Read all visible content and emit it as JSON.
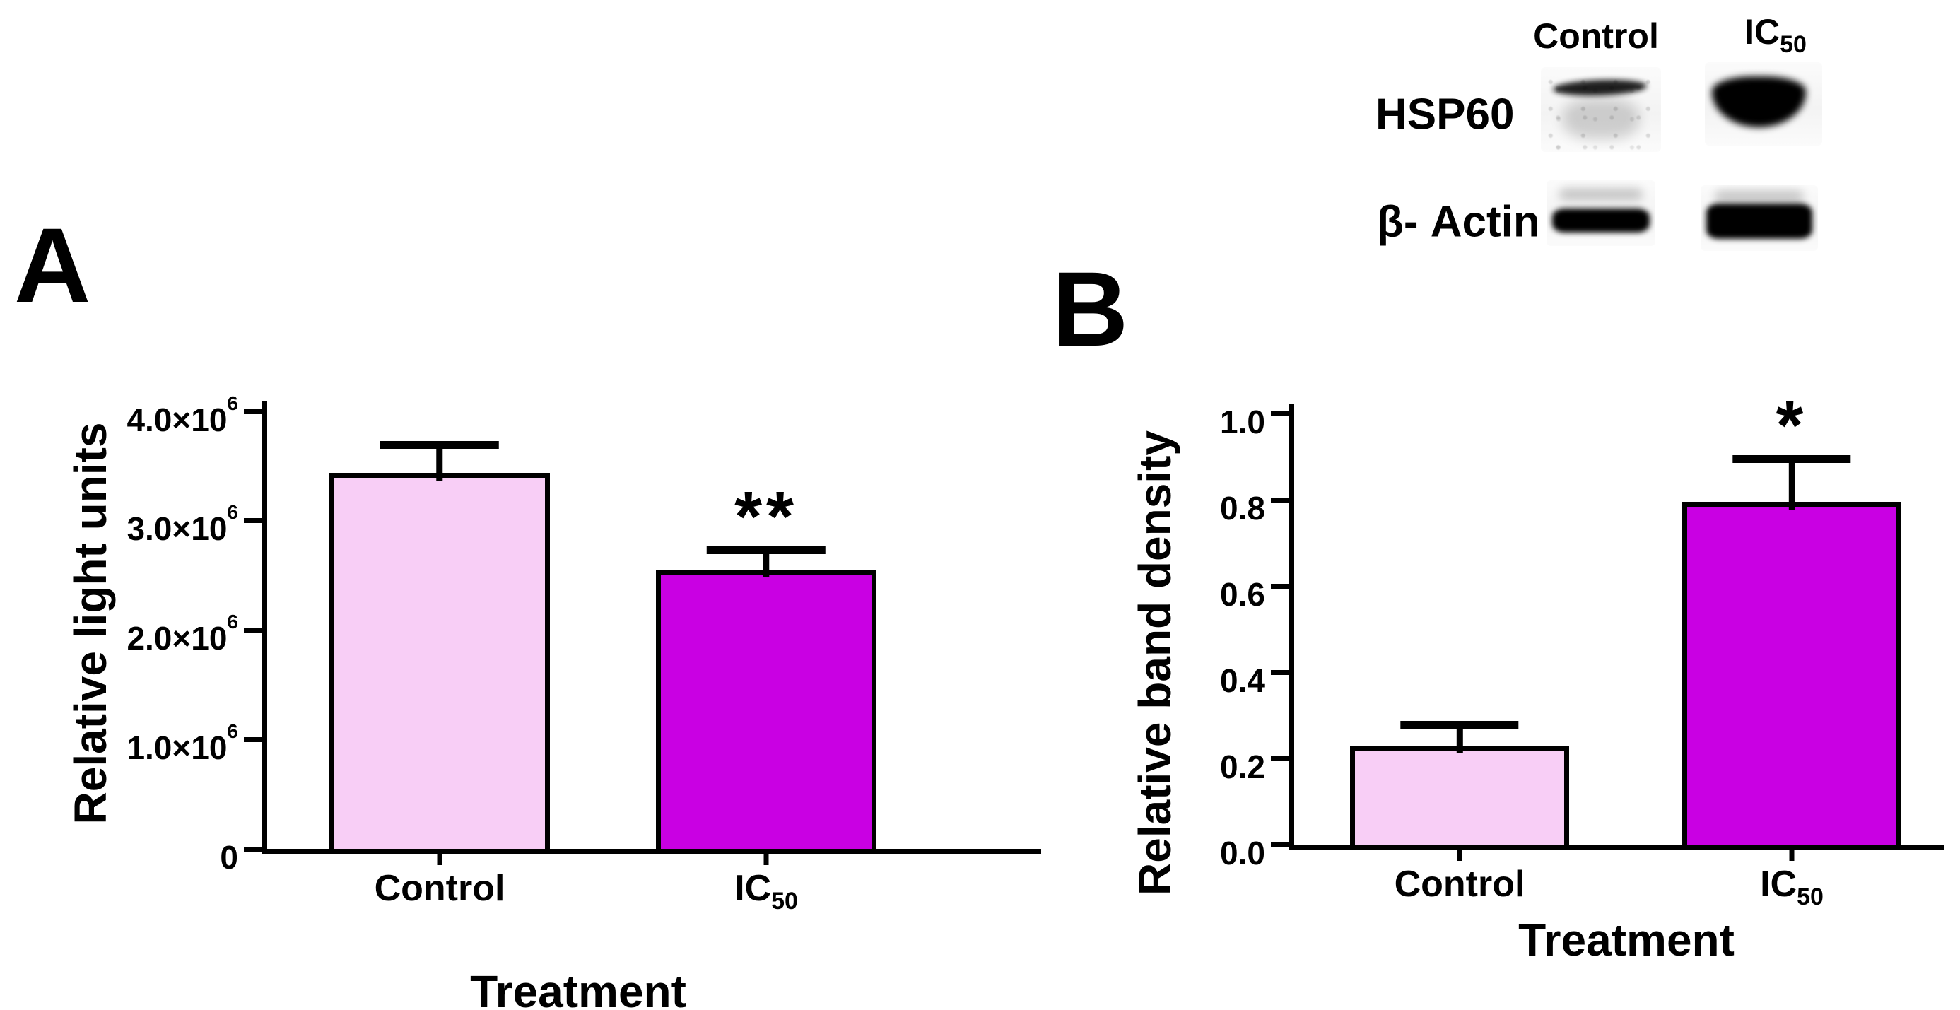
{
  "page": {
    "background": "#ffffff"
  },
  "colors": {
    "control_fill": "#F8CEF6",
    "ic50_fill": "#C900E3",
    "ink": "#000000"
  },
  "panel_labels": [
    "A",
    "B"
  ],
  "blot": {
    "lane_labels": [
      {
        "text": "Control",
        "sub": ""
      },
      {
        "text": "IC",
        "sub": "50"
      }
    ],
    "rows": [
      {
        "label": "HSP60",
        "bands": [
          {
            "lane": "Control",
            "intensity": "faint"
          },
          {
            "lane": "IC50",
            "intensity": "strong"
          }
        ]
      },
      {
        "label": "β- Actin",
        "bands": [
          {
            "lane": "Control",
            "intensity": "medium"
          },
          {
            "lane": "IC50",
            "intensity": "strong"
          }
        ]
      }
    ]
  },
  "chart_data": [
    {
      "type": "bar",
      "panel": "A",
      "title": "",
      "categories": [
        {
          "text": "Control",
          "sub": ""
        },
        {
          "text": "IC",
          "sub": "50"
        }
      ],
      "values": [
        3440000,
        2550000
      ],
      "errors": [
        240000,
        160000
      ],
      "ylabel": "Relative light units",
      "xlabel": "Treatment",
      "ylim": [
        0,
        4000000
      ],
      "ytick_values": [
        4000000,
        3000000,
        2000000,
        1000000,
        0
      ],
      "ytick_labels": [
        {
          "t": "4.0×10",
          "sup": "6"
        },
        {
          "t": "3.0×10",
          "sup": "6"
        },
        {
          "t": "2.0×10",
          "sup": "6"
        },
        {
          "t": "1.0×10",
          "sup": "6"
        },
        {
          "t": "0",
          "sup": ""
        }
      ],
      "bar_colors": [
        "#F8CEF6",
        "#C900E3"
      ],
      "grid": false,
      "legend": false,
      "significance": {
        "on": "IC50",
        "marker": "**"
      }
    },
    {
      "type": "bar",
      "panel": "B",
      "title": "",
      "categories": [
        {
          "text": "Control",
          "sub": ""
        },
        {
          "text": "IC",
          "sub": "50"
        }
      ],
      "values": [
        0.23,
        0.795
      ],
      "errors": [
        0.045,
        0.095
      ],
      "ylabel": "Relative band density",
      "xlabel": "Treatment",
      "ylim": [
        0,
        1.0
      ],
      "ytick_values": [
        1.0,
        0.8,
        0.6,
        0.4,
        0.2,
        0.0
      ],
      "ytick_labels": [
        {
          "t": "1.0",
          "sup": ""
        },
        {
          "t": "0.8",
          "sup": ""
        },
        {
          "t": "0.6",
          "sup": ""
        },
        {
          "t": "0.4",
          "sup": ""
        },
        {
          "t": "0.2",
          "sup": ""
        },
        {
          "t": "0.0",
          "sup": ""
        }
      ],
      "bar_colors": [
        "#F8CEF6",
        "#C900E3"
      ],
      "grid": false,
      "legend": false,
      "significance": {
        "on": "IC50",
        "marker": "*"
      }
    }
  ]
}
